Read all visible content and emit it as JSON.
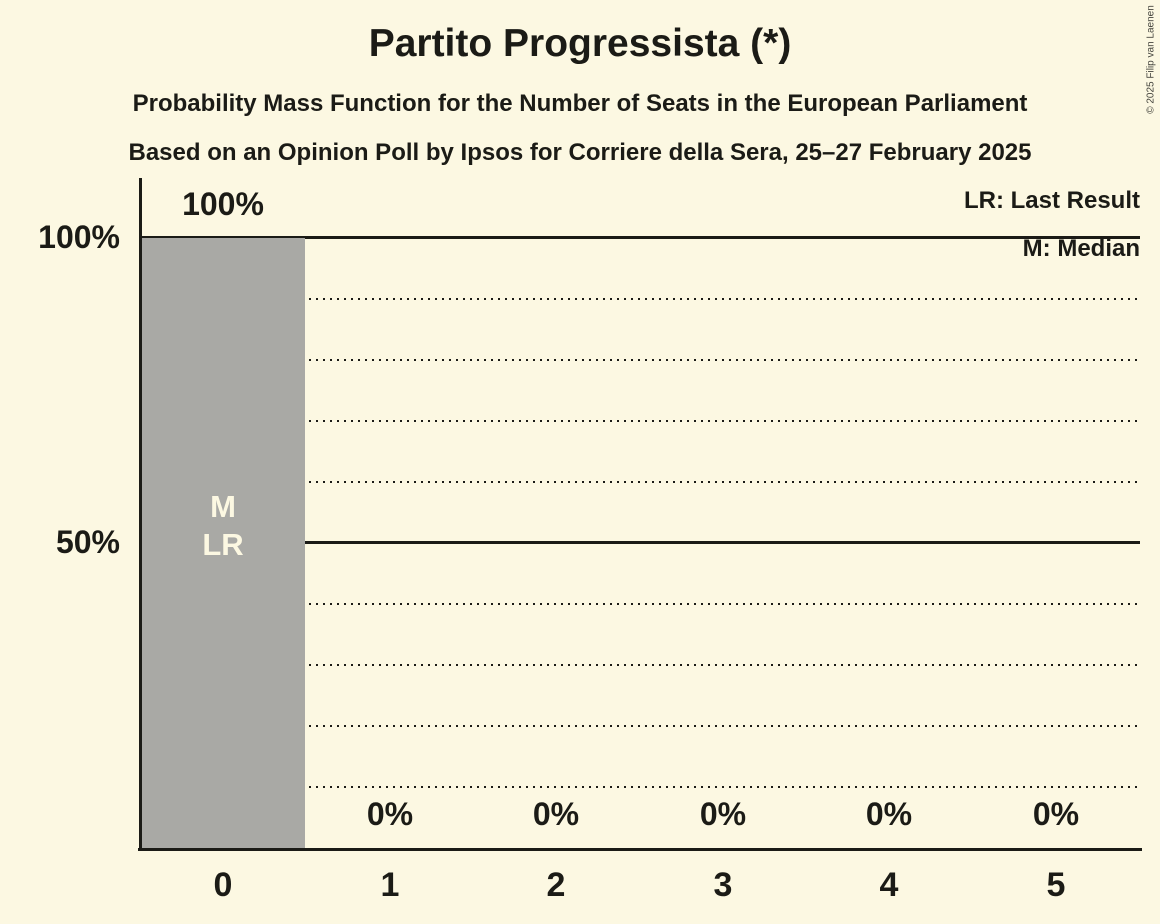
{
  "title": "Partito Progressista (*)",
  "subtitle1": "Probability Mass Function for the Number of Seats in the European Parliament",
  "subtitle2": "Based on an Opinion Poll by Ipsos for Corriere della Sera, 25–27 February 2025",
  "legend": {
    "last_result": "LR: Last Result",
    "median": "M: Median"
  },
  "copyright": "© 2025 Filip van Laenen",
  "y_axis": {
    "ticks": [
      {
        "label": "100%",
        "value": 100
      },
      {
        "label": "50%",
        "value": 50
      }
    ]
  },
  "annotations": {
    "median": "M",
    "last_result": "LR"
  },
  "colors": {
    "background": "#FCF8E2",
    "bar": "#A9A9A5",
    "text": "#1B1B16",
    "bar_inner_label": "#FCF8E2"
  },
  "chart_data": {
    "type": "bar",
    "title": "Partito Progressista (*)",
    "categories": [
      "0",
      "1",
      "2",
      "3",
      "4",
      "5"
    ],
    "values": [
      100,
      0,
      0,
      0,
      0,
      0
    ],
    "value_labels": [
      "100%",
      "0%",
      "0%",
      "0%",
      "0%",
      "0%"
    ],
    "xlabel": "",
    "ylabel": "",
    "ylim": [
      0,
      100
    ],
    "y_gridline_interval_pct": 10,
    "solid_gridlines_pct": [
      100,
      50
    ],
    "dotted_gridlines_pct": [
      90,
      80,
      70,
      60,
      40,
      30,
      20,
      10
    ],
    "median_seat": "0",
    "last_result_seat": "0",
    "legend_position": "top-right",
    "bar_label_position": "above"
  }
}
